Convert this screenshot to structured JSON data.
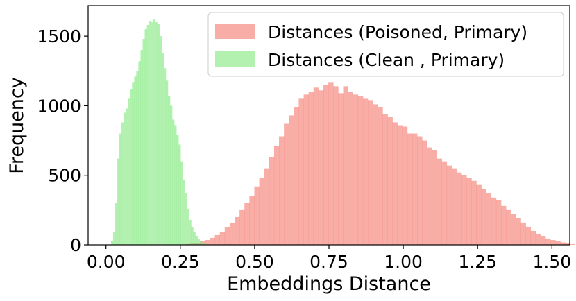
{
  "chart_data": {
    "type": "histogram",
    "title": "",
    "xlabel": "Embeddings Distance",
    "ylabel": "Frequency",
    "xlim": [
      -0.06,
      1.56
    ],
    "ylim": [
      0,
      1720
    ],
    "x_ticks": [
      0.0,
      0.25,
      0.5,
      0.75,
      1.0,
      1.25,
      1.5
    ],
    "x_tick_labels": [
      "0.00",
      "0.25",
      "0.50",
      "0.75",
      "1.00",
      "1.25",
      "1.50"
    ],
    "y_ticks": [
      0,
      500,
      1000,
      1500
    ],
    "y_tick_labels": [
      "0",
      "500",
      "1000",
      "1500"
    ],
    "grid": false,
    "legend_position": "upper right",
    "series": [
      {
        "name": "Distances (Poisoned, Primary)",
        "color": "#f4766a",
        "opacity": 0.6,
        "bin_start": 0.25,
        "bin_width": 0.0166,
        "values": [
          3,
          6,
          10,
          15,
          25,
          35,
          50,
          70,
          95,
          125,
          160,
          200,
          250,
          300,
          350,
          420,
          480,
          550,
          630,
          710,
          780,
          870,
          930,
          990,
          1050,
          1080,
          1100,
          1130,
          1110,
          1150,
          1170,
          1140,
          1090,
          1140,
          1100,
          1080,
          1070,
          1050,
          1040,
          1010,
          990,
          940,
          920,
          880,
          860,
          850,
          800,
          800,
          780,
          750,
          700,
          680,
          620,
          600,
          570,
          550,
          520,
          500,
          480,
          460,
          430,
          400,
          370,
          340,
          320,
          280,
          250,
          220,
          190,
          160,
          130,
          100,
          80,
          60,
          45,
          35,
          25,
          18,
          10,
          5
        ]
      },
      {
        "name": "Distances (Clean , Primary)",
        "color": "#7ee77c",
        "opacity": 0.6,
        "bin_start": 0.0167,
        "bin_width": 0.0071,
        "values": [
          30,
          90,
          300,
          620,
          800,
          880,
          950,
          980,
          1050,
          1120,
          1170,
          1210,
          1250,
          1320,
          1400,
          1480,
          1550,
          1580,
          1610,
          1600,
          1620,
          1600,
          1590,
          1500,
          1380,
          1270,
          1180,
          1070,
          1000,
          900,
          860,
          790,
          720,
          600,
          470,
          370,
          260,
          180,
          130,
          90,
          60,
          40,
          25,
          15,
          8,
          4
        ]
      }
    ]
  }
}
